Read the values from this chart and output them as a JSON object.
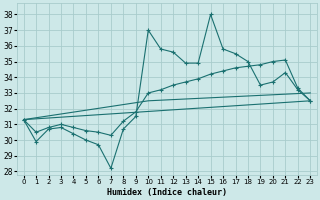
{
  "xlabel": "Humidex (Indice chaleur)",
  "xlim": [
    -0.5,
    23.5
  ],
  "ylim": [
    27.8,
    38.7
  ],
  "yticks": [
    28,
    29,
    30,
    31,
    32,
    33,
    34,
    35,
    36,
    37,
    38
  ],
  "xticks": [
    0,
    1,
    2,
    3,
    4,
    5,
    6,
    7,
    8,
    9,
    10,
    11,
    12,
    13,
    14,
    15,
    16,
    17,
    18,
    19,
    20,
    21,
    22,
    23
  ],
  "bg_color": "#cde8e8",
  "grid_color": "#a8cccc",
  "line_color": "#1a7070",
  "jagged_x": [
    0,
    1,
    2,
    3,
    4,
    5,
    6,
    7,
    8,
    9,
    10,
    11,
    12,
    13,
    14,
    15,
    16,
    17,
    18,
    19,
    20,
    21,
    22,
    23
  ],
  "jagged_y": [
    31.3,
    29.9,
    30.7,
    30.8,
    30.4,
    30.0,
    29.7,
    28.2,
    30.7,
    31.5,
    37.0,
    35.8,
    35.6,
    34.9,
    34.9,
    38.0,
    35.8,
    35.5,
    35.0,
    33.5,
    33.7,
    34.3,
    33.2,
    32.5
  ],
  "smooth_x": [
    0,
    1,
    2,
    3,
    4,
    5,
    6,
    7,
    8,
    9,
    10,
    11,
    12,
    13,
    14,
    15,
    16,
    17,
    18,
    19,
    20,
    21,
    22,
    23
  ],
  "smooth_y": [
    31.3,
    30.5,
    30.8,
    31.0,
    30.8,
    30.6,
    30.5,
    30.3,
    31.2,
    31.8,
    33.0,
    33.2,
    33.5,
    33.7,
    33.9,
    34.2,
    34.4,
    34.6,
    34.7,
    34.8,
    35.0,
    35.1,
    33.3,
    32.5
  ],
  "trend1_x": [
    0,
    23
  ],
  "trend1_y": [
    31.3,
    32.5
  ],
  "trend2_x": [
    0,
    10,
    23
  ],
  "trend2_y": [
    31.3,
    32.5,
    33.0
  ]
}
